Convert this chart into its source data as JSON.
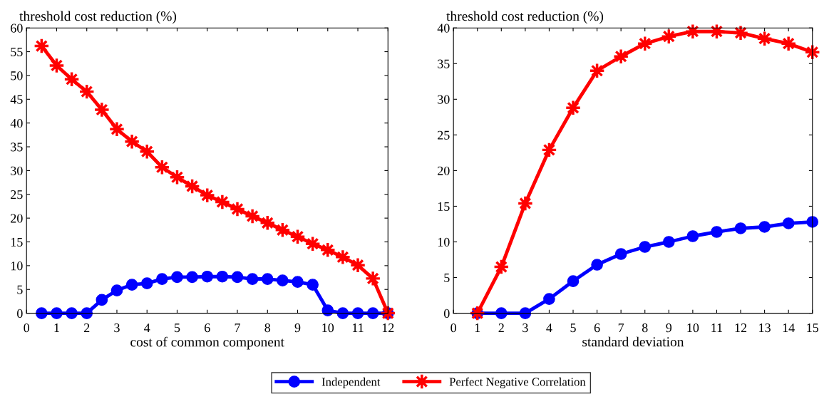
{
  "chart_data": [
    {
      "type": "line",
      "ylabel": "threshold cost reduction (%)",
      "xlabel": "cost of common component",
      "xlim": [
        0,
        12
      ],
      "xticks": [
        0,
        1,
        2,
        3,
        4,
        5,
        6,
        7,
        8,
        9,
        10,
        11,
        12
      ],
      "ylim": [
        0,
        60
      ],
      "yticks": [
        0,
        5,
        10,
        15,
        20,
        25,
        30,
        35,
        40,
        45,
        50,
        55,
        60
      ],
      "grid": false,
      "legend": "bottom",
      "x": [
        0.5,
        1,
        1.5,
        2,
        2.5,
        3,
        3.5,
        4,
        4.5,
        5,
        5.5,
        6,
        6.5,
        7,
        7.5,
        8,
        8.5,
        9,
        9.5,
        10,
        10.5,
        11,
        11.5,
        12
      ],
      "series": [
        {
          "name": "Independent",
          "color": "#0000ff",
          "marker": "circle",
          "values": [
            0,
            0,
            0,
            0,
            2.8,
            4.8,
            6.0,
            6.3,
            7.2,
            7.6,
            7.6,
            7.7,
            7.7,
            7.6,
            7.2,
            7.2,
            6.9,
            6.6,
            6.0,
            0.6,
            0,
            0,
            0,
            0
          ]
        },
        {
          "name": "Perfect Negative Correlation",
          "color": "#ff0000",
          "marker": "star",
          "values": [
            56.2,
            52.1,
            49.2,
            46.6,
            42.8,
            38.7,
            36.1,
            34.0,
            30.7,
            28.6,
            26.7,
            24.8,
            23.4,
            21.9,
            20.4,
            19.0,
            17.5,
            16.1,
            14.6,
            13.3,
            11.8,
            10.1,
            7.3,
            0
          ]
        }
      ]
    },
    {
      "type": "line",
      "ylabel": "threshold cost reduction (%)",
      "xlabel": "standard deviation",
      "xlim": [
        0,
        15
      ],
      "xticks": [
        0,
        1,
        2,
        3,
        4,
        5,
        6,
        7,
        8,
        9,
        10,
        11,
        12,
        13,
        14,
        15
      ],
      "ylim": [
        0,
        40
      ],
      "yticks": [
        0,
        5,
        10,
        15,
        20,
        25,
        30,
        35,
        40
      ],
      "grid": false,
      "x": [
        1,
        2,
        3,
        4,
        5,
        6,
        7,
        8,
        9,
        10,
        11,
        12,
        13,
        14,
        15
      ],
      "series": [
        {
          "color": "#0000ff",
          "marker": "circle",
          "values": [
            0,
            0,
            0,
            2.0,
            4.5,
            6.8,
            8.3,
            9.3,
            10.0,
            10.8,
            11.4,
            11.9,
            12.1,
            12.6,
            12.8
          ]
        },
        {
          "color": "#ff0000",
          "marker": "star",
          "values": [
            0,
            6.5,
            15.4,
            22.9,
            28.8,
            34.0,
            36.0,
            37.8,
            38.8,
            39.5,
            39.5,
            39.3,
            38.5,
            37.8,
            36.6
          ]
        }
      ]
    }
  ]
}
